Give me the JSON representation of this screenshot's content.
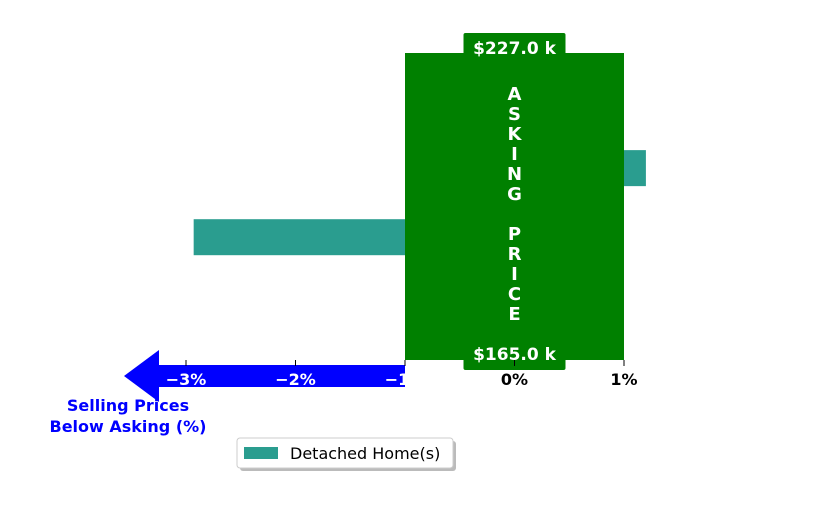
{
  "chart_data": {
    "type": "bar",
    "orientation": "horizontal",
    "series": [
      {
        "name": "Detached Home(s)",
        "color": "#2a9d8f",
        "values": [
          {
            "y": 1.25,
            "x": 1.2
          },
          {
            "y": 0.8,
            "x": -2.93
          }
        ]
      }
    ],
    "xlim": [
      -3.8,
      1.8
    ],
    "ylim": [
      0,
      2
    ],
    "x_ticks": [
      {
        "value": -3,
        "label": "−3%"
      },
      {
        "value": -2,
        "label": "−2%"
      },
      {
        "value": -1,
        "label": "−1%"
      },
      {
        "value": 0,
        "label": "0%"
      },
      {
        "value": 1,
        "label": "1%"
      }
    ],
    "grid": false,
    "legend": {
      "placement": "below",
      "entries": [
        "Detached Home(s)"
      ]
    },
    "asking_band": {
      "x_range": [
        -1,
        1
      ],
      "color": "#008000",
      "label": "ASKING PRICE",
      "letters": [
        "A",
        "S",
        "K",
        "I",
        "N",
        "G",
        "",
        "P",
        "R",
        "I",
        "C",
        "E"
      ],
      "top_price": "$227.0 k",
      "bottom_price": "$165.0 k"
    },
    "arrow": {
      "color": "#0000ff",
      "from": -1,
      "direction": "left",
      "label_line1": "Selling Prices",
      "label_line2": "Below Asking (%)"
    }
  }
}
